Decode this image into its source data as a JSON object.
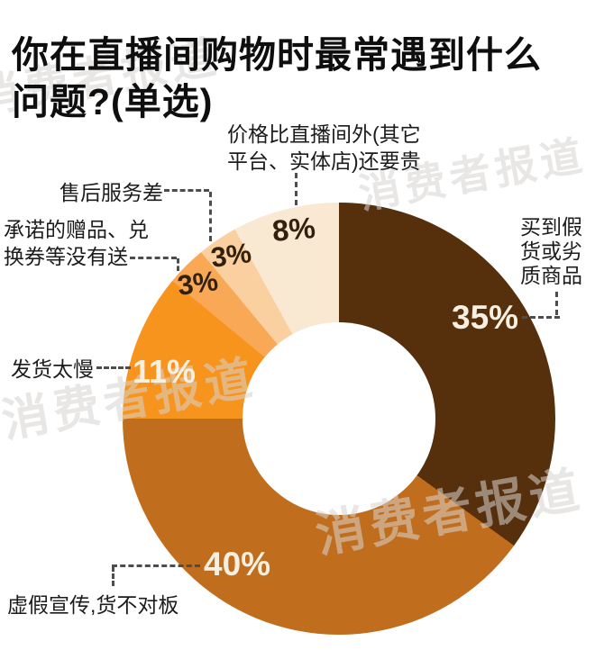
{
  "title": {
    "line1": "你在直播间购物时最常遇到什么",
    "line2": "问题?(单选)"
  },
  "watermark": {
    "text": "消费者报道"
  },
  "chart_data": {
    "type": "pie",
    "variant": "donut",
    "start_angle_deg": 0,
    "direction": "clockwise",
    "title": "你在直播间购物时最常遇到什么问题?(单选)",
    "inner_radius_ratio": 0.45,
    "slices": [
      {
        "label": "买到假货或劣质商品",
        "value": 35,
        "value_label": "35%",
        "color": "#562F0D"
      },
      {
        "label": "虚假宣传,货不对板",
        "value": 40,
        "value_label": "40%",
        "color": "#C06E1E"
      },
      {
        "label": "发货太慢",
        "value": 11,
        "value_label": "11%",
        "color": "#F7941E"
      },
      {
        "label": "承诺的赠品、兑换券等没有送",
        "value": 3,
        "value_label": "3%",
        "color": "#F9A855"
      },
      {
        "label": "售后服务差",
        "value": 3,
        "value_label": "3%",
        "color": "#FBD0A0"
      },
      {
        "label": "价格比直播间外(其它平台、实体店)还要贵",
        "value": 8,
        "value_label": "8%",
        "color": "#FAE9D2"
      }
    ]
  },
  "labels": {
    "price_line1": "价格比直播间外(其它",
    "price_line2": "平台、实体店)还要贵",
    "after_sales": "售后服务差",
    "gift_line1": "承诺的赠品、兑",
    "gift_line2": "换券等没有送",
    "slow_shipping": "发货太慢",
    "false_ad": "虚假宣传,货不对板",
    "fake_line1": "买到假",
    "fake_line2": "货或劣",
    "fake_line3": "质商品"
  }
}
